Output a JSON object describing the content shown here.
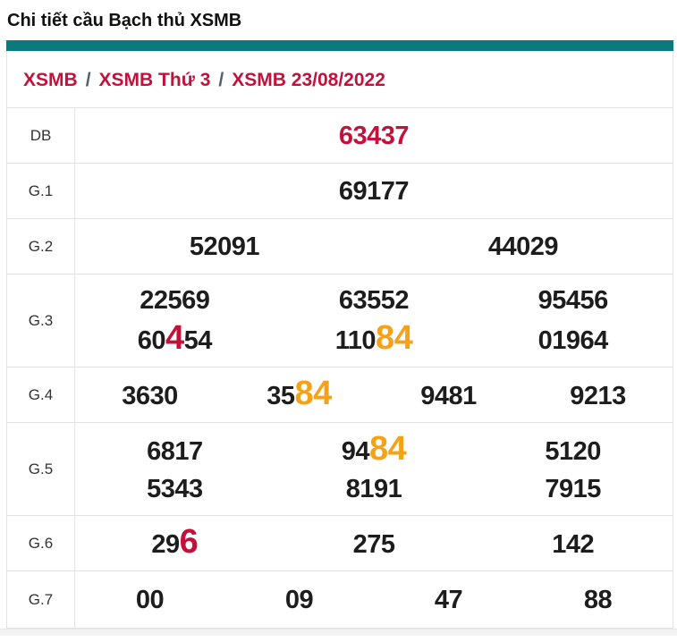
{
  "page": {
    "title": "Chi tiết cầu Bạch thủ XSMB"
  },
  "breadcrumb": {
    "separator": "/",
    "items": [
      "XSMB",
      "XSMB Thứ 3",
      "XSMB 23/08/2022"
    ]
  },
  "colors": {
    "accent": "#097a7e",
    "crimson": "#c4113b",
    "orange": "#f6a217",
    "text": "#1d1d1d",
    "label": "#333333",
    "border": "#e2e2e2",
    "bottom_strip": "#f3f3f3"
  },
  "table": {
    "rows": [
      {
        "label": "DB",
        "lines": [
          [
            [
              {
                "t": "63437",
                "c": "red"
              }
            ]
          ]
        ]
      },
      {
        "label": "G.1",
        "lines": [
          [
            [
              {
                "t": "69177"
              }
            ]
          ]
        ]
      },
      {
        "label": "G.2",
        "lines": [
          [
            [
              {
                "t": "52091"
              }
            ],
            [
              {
                "t": "44029"
              }
            ]
          ]
        ]
      },
      {
        "label": "G.3",
        "lines": [
          [
            [
              {
                "t": "22569"
              }
            ],
            [
              {
                "t": "63552"
              }
            ],
            [
              {
                "t": "95456"
              }
            ]
          ],
          [
            [
              {
                "t": "60"
              },
              {
                "t": "4",
                "c": "red",
                "big": true
              },
              {
                "t": "54"
              }
            ],
            [
              {
                "t": "110"
              },
              {
                "t": "84",
                "c": "orange",
                "big": true
              }
            ],
            [
              {
                "t": "01964"
              }
            ]
          ]
        ]
      },
      {
        "label": "G.4",
        "lines": [
          [
            [
              {
                "t": "3630"
              }
            ],
            [
              {
                "t": "35"
              },
              {
                "t": "84",
                "c": "orange",
                "big": true
              }
            ],
            [
              {
                "t": "9481"
              }
            ],
            [
              {
                "t": "9213"
              }
            ]
          ]
        ]
      },
      {
        "label": "G.5",
        "lines": [
          [
            [
              {
                "t": "6817"
              }
            ],
            [
              {
                "t": "94"
              },
              {
                "t": "84",
                "c": "orange",
                "big": true
              }
            ],
            [
              {
                "t": "5120"
              }
            ]
          ],
          [
            [
              {
                "t": "5343"
              }
            ],
            [
              {
                "t": "8191"
              }
            ],
            [
              {
                "t": "7915"
              }
            ]
          ]
        ]
      },
      {
        "label": "G.6",
        "lines": [
          [
            [
              {
                "t": "29"
              },
              {
                "t": "6",
                "c": "red",
                "big": true
              }
            ],
            [
              {
                "t": "275"
              }
            ],
            [
              {
                "t": "142"
              }
            ]
          ]
        ]
      },
      {
        "label": "G.7",
        "lines": [
          [
            [
              {
                "t": "00"
              }
            ],
            [
              {
                "t": "09"
              }
            ],
            [
              {
                "t": "47"
              }
            ],
            [
              {
                "t": "88"
              }
            ]
          ]
        ]
      }
    ]
  }
}
